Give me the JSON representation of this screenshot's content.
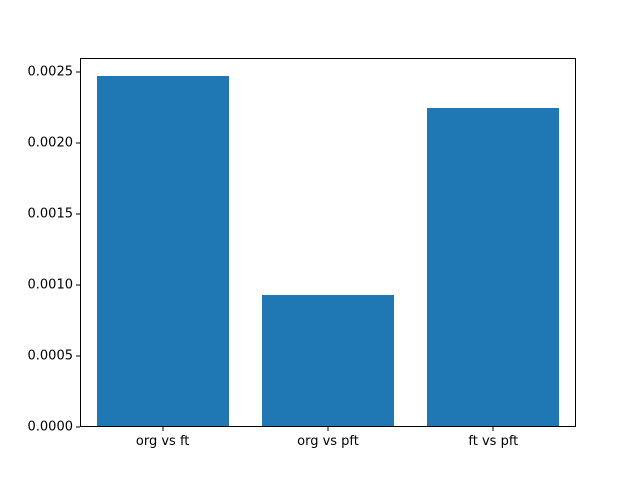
{
  "chart_data": {
    "type": "bar",
    "categories": [
      "org vs ft",
      "org vs pft",
      "ft vs pft"
    ],
    "values": [
      0.00248,
      0.00093,
      0.00225
    ],
    "title": "",
    "xlabel": "",
    "ylabel": "",
    "ylim": [
      0,
      0.0026
    ],
    "yticks": [
      0,
      0.0005,
      0.001,
      0.0015,
      0.002,
      0.0025
    ],
    "ytick_labels": [
      "0.0000",
      "0.0005",
      "0.0010",
      "0.0015",
      "0.0020",
      "0.0025"
    ],
    "bar_width_fraction": 0.8,
    "grid": false,
    "legend": null,
    "colors": {
      "bar": "#1f77b4",
      "axis": "#000000",
      "background": "#ffffff"
    }
  }
}
